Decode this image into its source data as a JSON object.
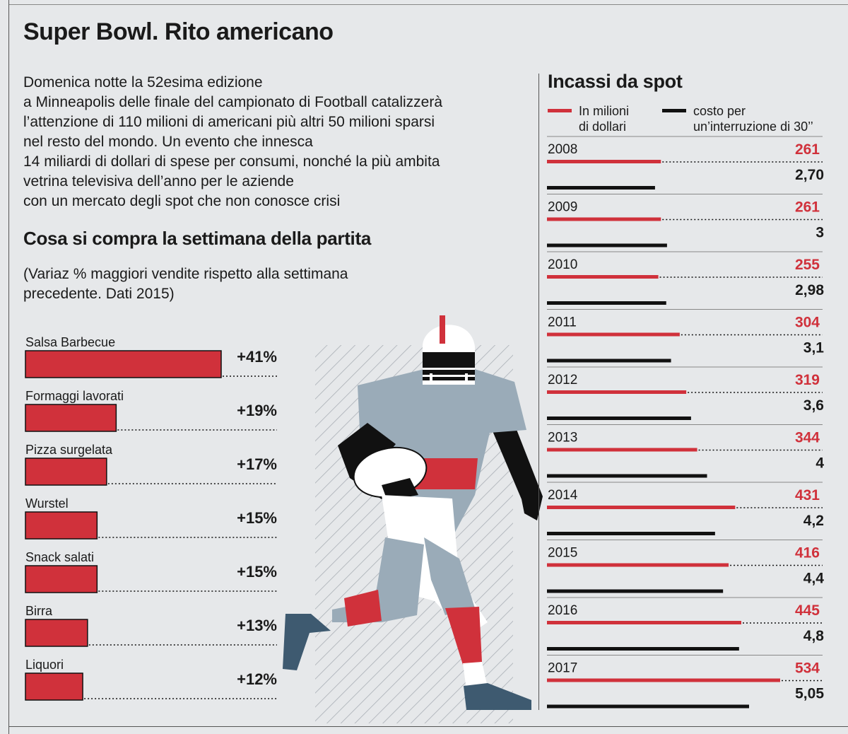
{
  "title": "Super Bowl. Rito americano",
  "intro_lines": [
    "Domenica notte la 52esima edizione",
    "a Minneapolis delle finale del campionato di Football catalizzerà",
    "l’attenzione di 110 milioni di americani più altri 50 milioni sparsi",
    "nel resto del mondo. Un evento che innesca",
    "14 miliardi di dollari di spese per consumi, nonché la più ambita",
    "vetrina televisiva dell’anno per le aziende",
    "con un mercato degli spot che non conosce crisi"
  ],
  "left_section": {
    "title": "Cosa si compra la settimana della partita",
    "note_lines": [
      "(Variaz % maggiori vendite rispetto alla settimana",
      "precedente. Dati 2015)"
    ]
  },
  "right_section": {
    "title": "Incassi da spot",
    "legend": {
      "red_lines": [
        "In milioni",
        "di dollari"
      ],
      "black_lines": [
        "costo per",
        "un’interruzione di 30’’"
      ]
    }
  },
  "colors": {
    "red": "#d0313b",
    "black": "#111111",
    "background": "#e6e8ea",
    "jersey": "#9aabb8",
    "shoe": "#3e5a70"
  },
  "chart_data": [
    {
      "type": "bar",
      "orientation": "horizontal",
      "title": "Cosa si compra la settimana della partita",
      "categories": [
        "Salsa Barbecue",
        "Formaggi lavorati",
        "Pizza surgelata",
        "Wurstel",
        "Snack salati",
        "Birra",
        "Liquori"
      ],
      "values": [
        41,
        19,
        17,
        15,
        15,
        13,
        12
      ],
      "labels": [
        "+41%",
        "+19%",
        "+17%",
        "+15%",
        "+15%",
        "+13%",
        "+12%"
      ],
      "unit": "%"
    },
    {
      "type": "bar",
      "orientation": "horizontal",
      "title": "Incassi da spot",
      "categories": [
        "2008",
        "2009",
        "2010",
        "2011",
        "2012",
        "2013",
        "2014",
        "2015",
        "2016",
        "2017"
      ],
      "series": [
        {
          "name": "In milioni di dollari",
          "color": "#d0313b",
          "values": [
            261,
            261,
            255,
            304,
            319,
            344,
            431,
            416,
            445,
            534
          ],
          "labels": [
            "261",
            "261",
            "255",
            "304",
            "319",
            "344",
            "431",
            "416",
            "445",
            "534"
          ]
        },
        {
          "name": "costo per un’interruzione di 30’’",
          "color": "#111111",
          "values": [
            2.7,
            3,
            2.98,
            3.1,
            3.6,
            4,
            4.2,
            4.4,
            4.8,
            5.05
          ],
          "labels": [
            "2,70",
            "3",
            "2,98",
            "3,1",
            "3,6",
            "4",
            "4,2",
            "4,4",
            "4,8",
            "5,05"
          ]
        }
      ]
    }
  ]
}
